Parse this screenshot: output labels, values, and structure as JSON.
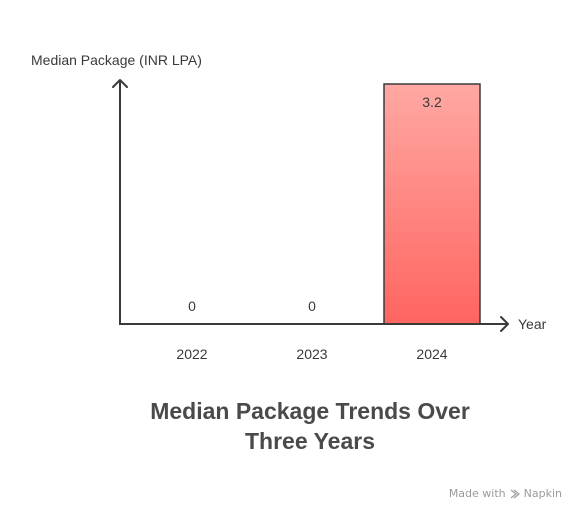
{
  "chart_data": {
    "type": "bar",
    "title": "Median Package Trends Over Three Years",
    "ylabel": "Median Package (INR LPA)",
    "xlabel": "Year",
    "categories": [
      "2022",
      "2023",
      "2024"
    ],
    "values": [
      0,
      0,
      3.2
    ],
    "value_labels": [
      "0",
      "0",
      "3.2"
    ],
    "ylim": [
      0,
      3.2
    ],
    "grid": false,
    "legend": "none",
    "colors": {
      "bar_top": "#ffa8a3",
      "bar_bottom": "#ff6560",
      "bar_stroke": "#3a3a3a",
      "axis": "#3a3a3a",
      "text": "#3a3a3a"
    }
  },
  "title_lines": [
    "Median Package Trends Over",
    "Three Years"
  ],
  "watermark": {
    "prefix": "Made with",
    "brand": "Napkin",
    "icon": "napkin-logo-icon"
  }
}
